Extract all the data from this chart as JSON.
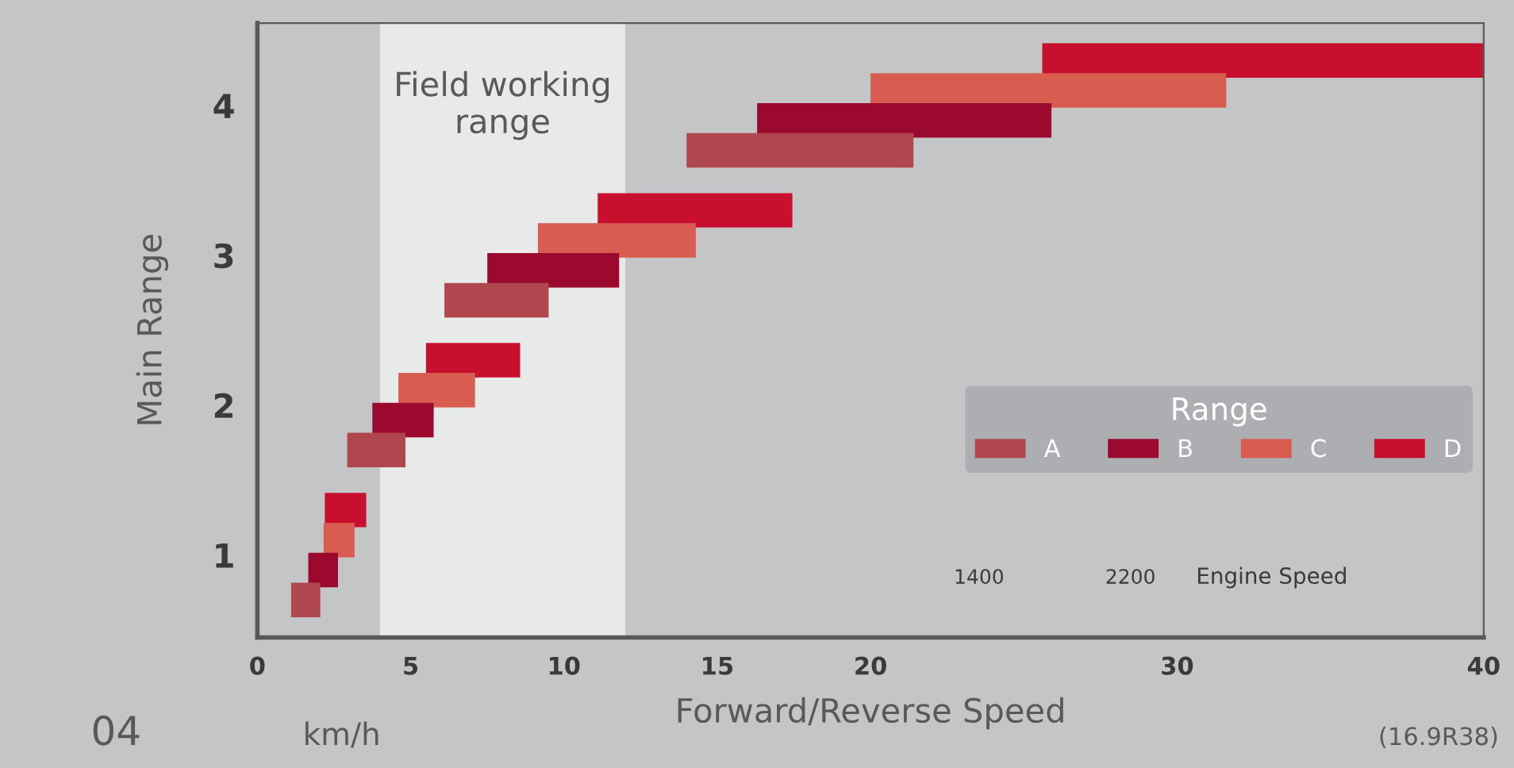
{
  "chart_data": {
    "type": "bar",
    "orientation": "horizontal",
    "categories": [
      "4",
      "3",
      "2",
      "1"
    ],
    "series": [
      {
        "name": "D",
        "color": "#c8102e",
        "base": [
          25.6,
          11.1,
          5.5,
          2.2
        ],
        "values": [
          14.4,
          6.35,
          3.07,
          1.35
        ]
      },
      {
        "name": "C",
        "color": "#d95c50",
        "base": [
          20.0,
          9.15,
          4.6,
          2.16
        ],
        "values": [
          11.6,
          5.15,
          2.5,
          1.01
        ]
      },
      {
        "name": "B",
        "color": "#9b0a2e",
        "base": [
          16.3,
          7.5,
          3.75,
          1.66
        ],
        "values": [
          9.6,
          4.3,
          2.0,
          0.97
        ]
      },
      {
        "name": "A",
        "color": "#b0474f",
        "base": [
          14.0,
          6.1,
          2.93,
          1.1
        ],
        "values": [
          7.4,
          3.4,
          1.9,
          0.95
        ]
      }
    ],
    "xlim": [
      0,
      40
    ],
    "xticks": [
      0,
      5,
      10,
      15,
      20,
      30,
      40
    ],
    "xlabel": "Forward/Reverse Speed",
    "ylabel": "Main Range",
    "legend": "bottom right",
    "legend_title": "Range",
    "bands": [
      {
        "axis": "x",
        "from": 4,
        "to": 12,
        "label": "Field working\nrange",
        "color": "#e8e9e9"
      }
    ],
    "annotations": [
      "km/h",
      "04",
      "(16.9R38)",
      "1400",
      "2200",
      "Engine Speed"
    ],
    "grid": false
  }
}
